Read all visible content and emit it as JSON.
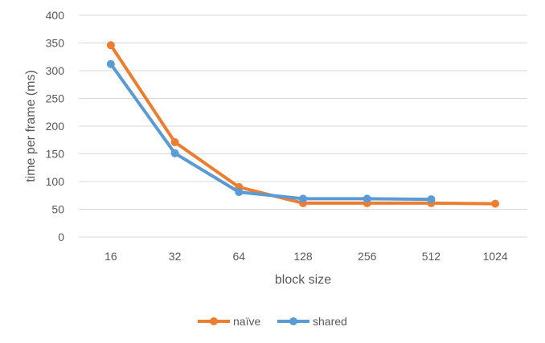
{
  "chart_data": {
    "type": "line",
    "title": "",
    "xlabel": "block size",
    "ylabel": "time per frame (ms)",
    "categories": [
      "16",
      "32",
      "64",
      "128",
      "256",
      "512",
      "1024"
    ],
    "ylim": [
      0,
      400
    ],
    "yticks": [
      "0",
      "50",
      "100",
      "150",
      "200",
      "250",
      "300",
      "350",
      "400"
    ],
    "grid": true,
    "legend_position": "bottom",
    "series": [
      {
        "name": "naïve",
        "color": "#ED7D31",
        "values": [
          346,
          171,
          90,
          61,
          61,
          61,
          60
        ]
      },
      {
        "name": "shared",
        "color": "#5B9BD5",
        "values": [
          312,
          151,
          81,
          69,
          69,
          68,
          null
        ]
      }
    ]
  }
}
